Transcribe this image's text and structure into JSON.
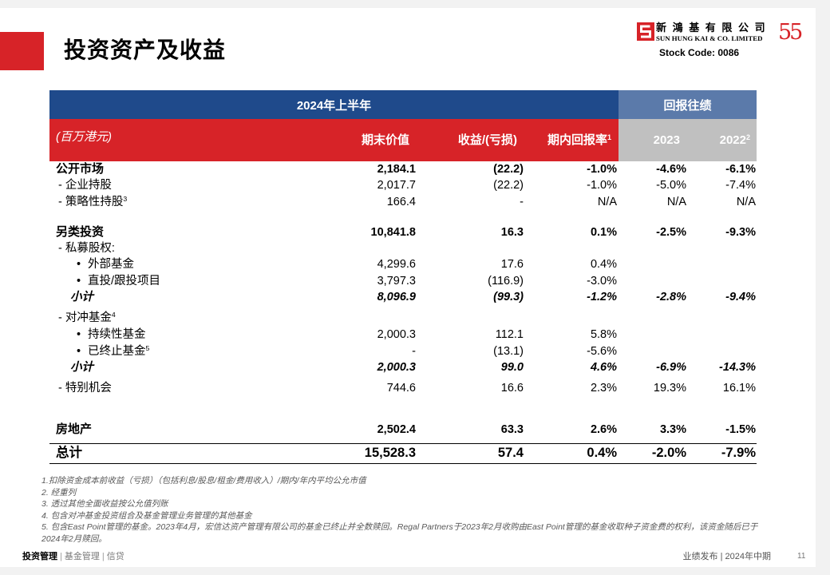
{
  "slide": {
    "title": "投资资产及收益",
    "accent_color": "#d72328"
  },
  "logo": {
    "chinese_name": "新鴻基有限公司",
    "english_name": "SUN HUNG KAI & CO. LIMITED",
    "anniversary": "55",
    "stock_code": "Stock Code: 0086"
  },
  "table": {
    "group_headers": {
      "current": "2024年上半年",
      "history": "回报往绩"
    },
    "unit_label": "(百万港元)",
    "columns": [
      {
        "label": "期末价值"
      },
      {
        "label": "收益/(亏损)"
      },
      {
        "label": "期内回报率",
        "sup": "1"
      },
      {
        "label": "2023"
      },
      {
        "label": "2022",
        "sup": "2"
      }
    ],
    "header_colors": {
      "current_group": "#1f4a8b",
      "history_group": "#5b7aaa",
      "current_columns": "#d72328",
      "history_columns": "#c0c0c0"
    },
    "sections": [
      {
        "label": "公开市场",
        "values": [
          "2,184.1",
          "(22.2)",
          "-1.0%",
          "-4.6%",
          "-6.1%"
        ],
        "children": [
          {
            "label": "- 企业持股",
            "values": [
              "2,017.7",
              "(22.2)",
              "-1.0%",
              "-5.0%",
              "-7.4%"
            ]
          },
          {
            "label": "- 策略性持股",
            "sup": "3",
            "values": [
              "166.4",
              "-",
              "N/A",
              "N/A",
              "N/A"
            ]
          }
        ]
      },
      {
        "label": "另类投资",
        "values": [
          "10,841.8",
          "16.3",
          "0.1%",
          "-2.5%",
          "-9.3%"
        ],
        "children": [
          {
            "label": "- 私募股权:",
            "children": [
              {
                "bullet": "•",
                "label": "外部基金",
                "values": [
                  "4,299.6",
                  "17.6",
                  "0.4%"
                ]
              },
              {
                "bullet": "•",
                "label": "直投/跟投项目",
                "values": [
                  "3,797.3",
                  "(116.9)",
                  "-3.0%"
                ]
              }
            ],
            "subtotal": {
              "label": "小计",
              "values": [
                "8,096.9",
                "(99.3)",
                "-1.2%",
                "-2.8%",
                "-9.4%"
              ]
            }
          },
          {
            "label": "- 对冲基金",
            "sup": "4",
            "children": [
              {
                "bullet": "•",
                "label": "持续性基金",
                "values": [
                  "2,000.3",
                  "112.1",
                  "5.8%"
                ]
              },
              {
                "bullet": "•",
                "label": "已终止基金",
                "sup": "5",
                "values": [
                  "-",
                  "(13.1)",
                  "-5.6%"
                ]
              }
            ],
            "subtotal": {
              "label": "小计",
              "values": [
                "2,000.3",
                "99.0",
                "4.6%",
                "-6.9%",
                "-14.3%"
              ]
            }
          },
          {
            "label": "- 特别机会",
            "values": [
              "744.6",
              "16.6",
              "2.3%",
              "19.3%",
              "16.1%"
            ]
          }
        ]
      },
      {
        "label": "房地产",
        "values": [
          "2,502.4",
          "63.3",
          "2.6%",
          "3.3%",
          "-1.5%"
        ]
      }
    ],
    "total": {
      "label": "总计",
      "values": [
        "15,528.3",
        "57.4",
        "0.4%",
        "-2.0%",
        "-7.9%"
      ]
    }
  },
  "footnotes": [
    "1.扣除资金成本前收益（亏损）（包括利息/股息/租金/费用收入）/期内/年内平均公允市值",
    "2. 经重列",
    "3. 透过其他全面收益按公允值列账",
    "4. 包含对冲基金投资组合及基金管理业务管理的其他基金",
    "5. 包含East Point管理的基金。2023年4月，宏信达资产管理有限公司的基金已终止并全数赎回。Regal Partners于2023年2月收购由East Point管理的基金收取种子资金费的权利，该资金随后已于2024年2月赎回。"
  ],
  "footer": {
    "business_lines": [
      "投资管理",
      "基金管理",
      "信贷"
    ],
    "separator": "|",
    "event": "业绩发布 | 2024年中期",
    "page_number": "11"
  }
}
